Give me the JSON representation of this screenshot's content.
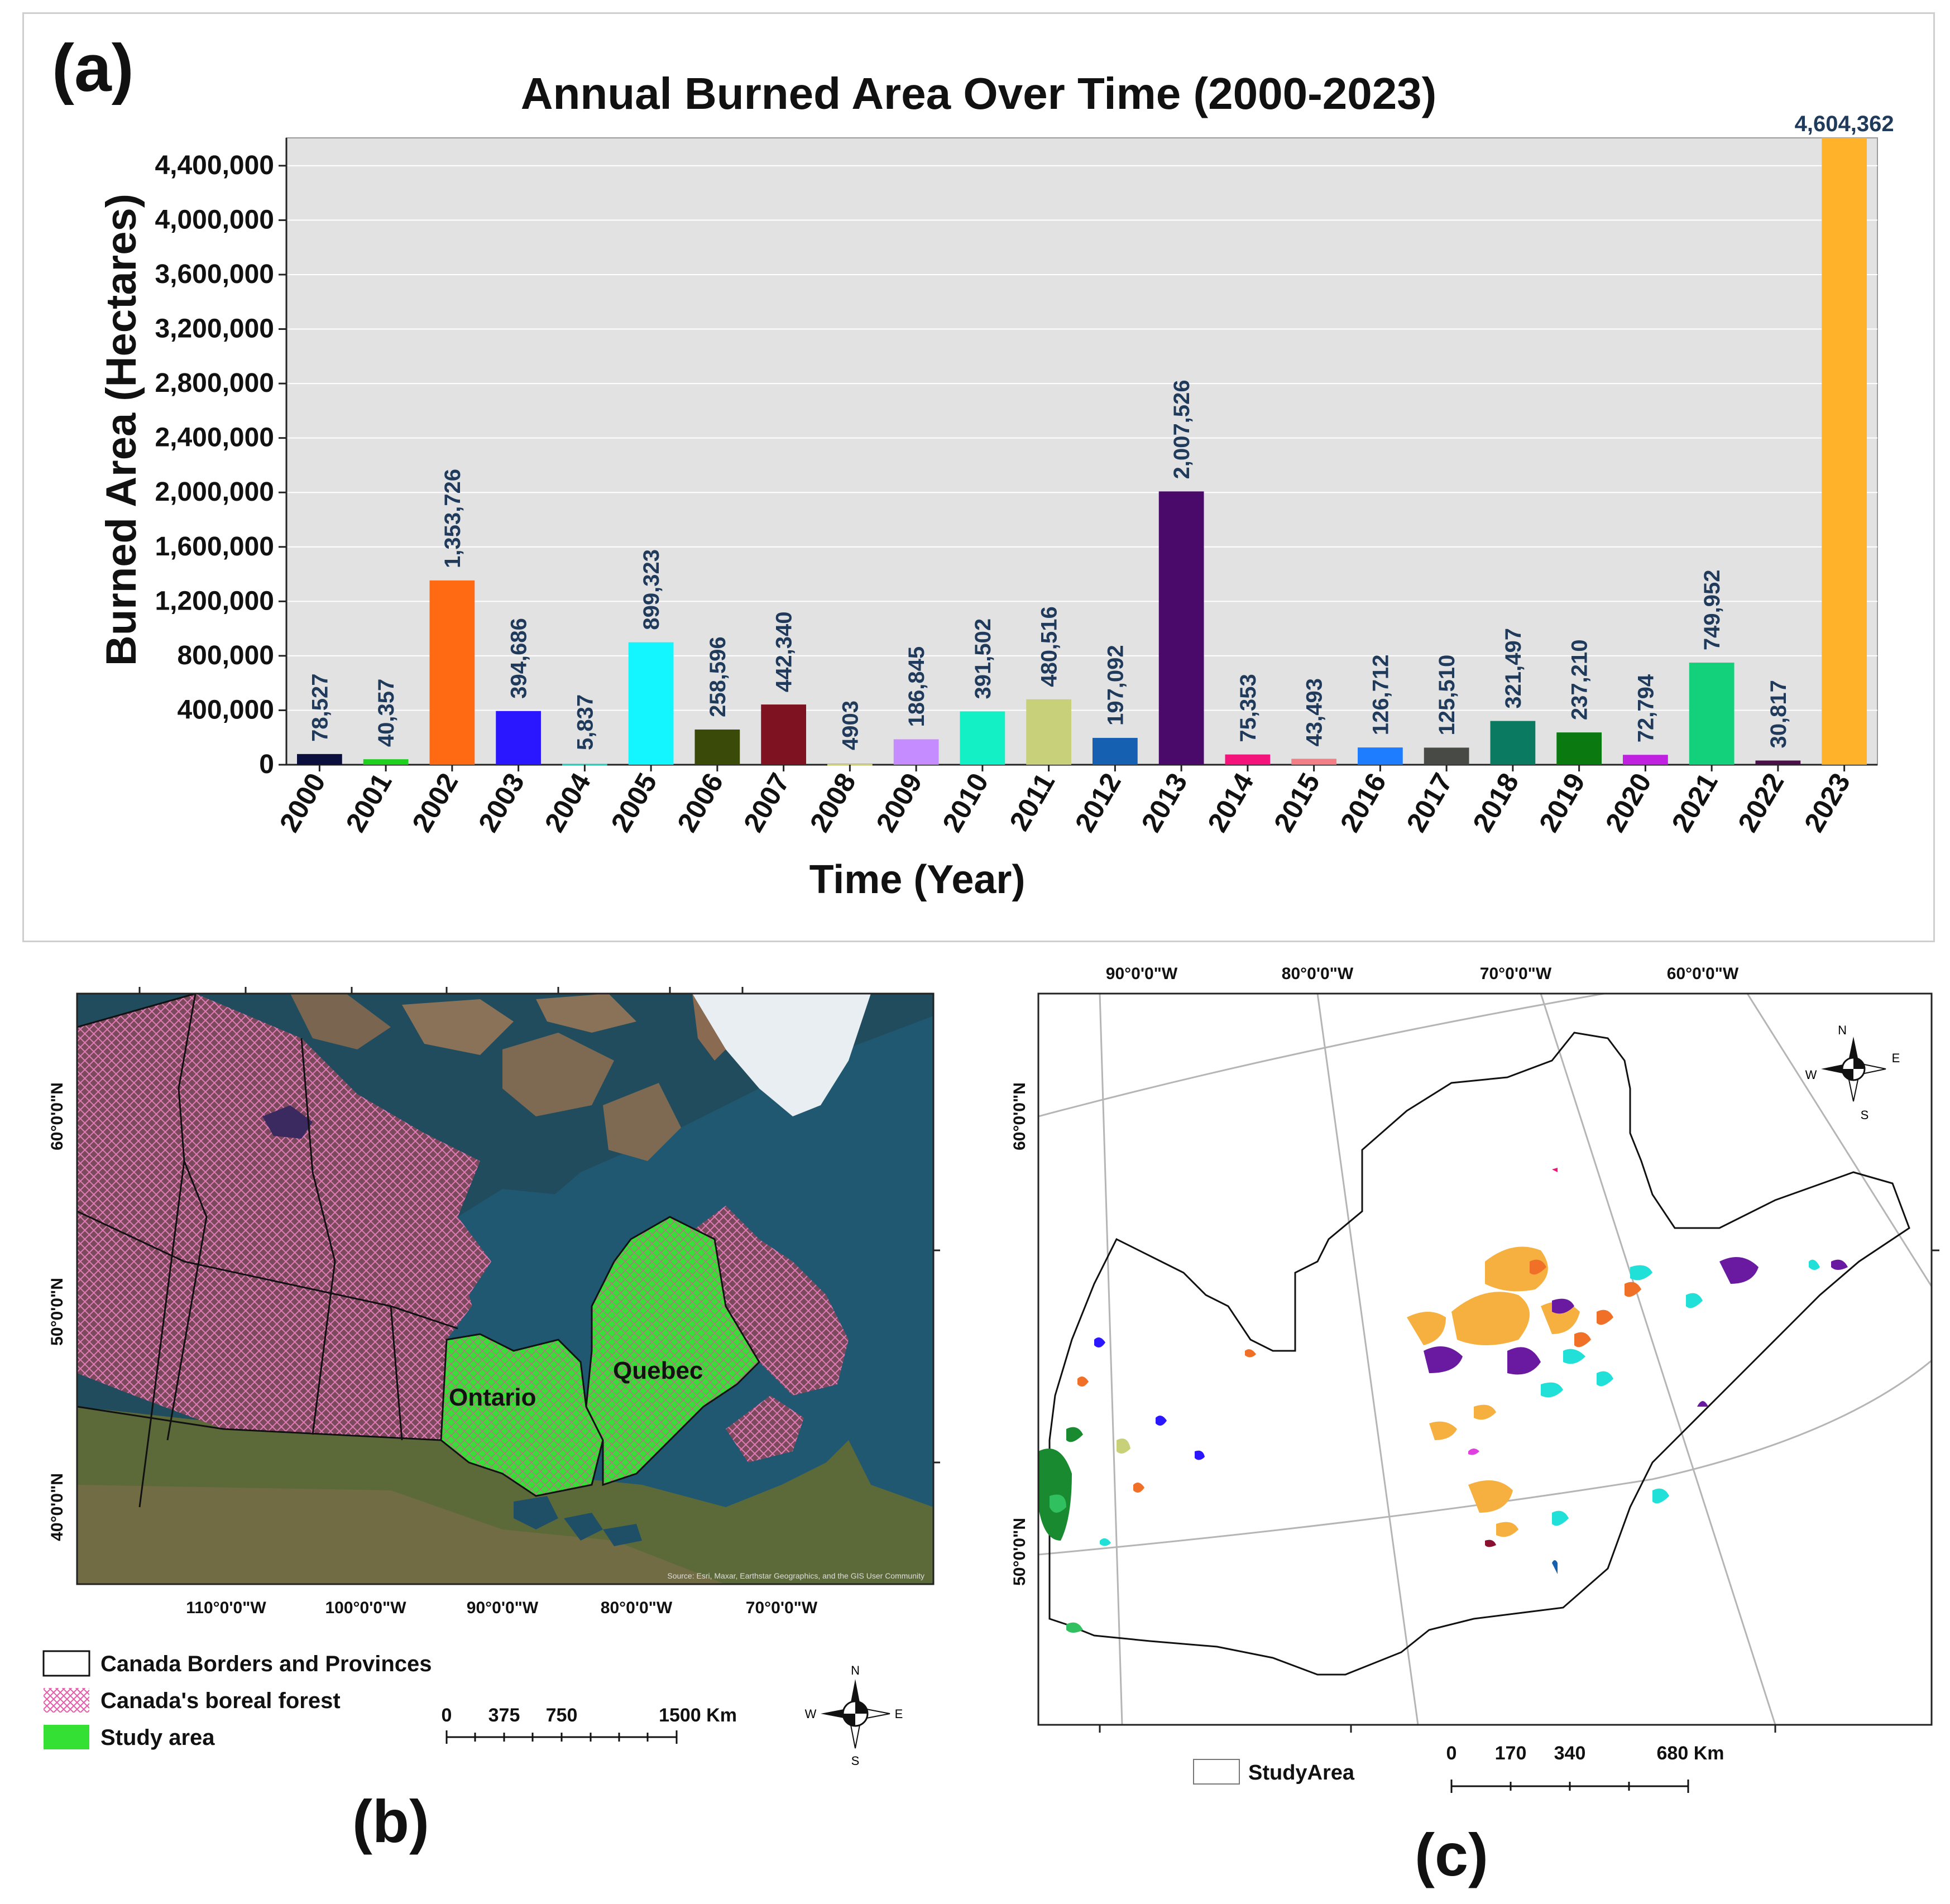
{
  "panel_a": {
    "letter": "(a)",
    "chart_data": {
      "type": "bar",
      "title": "Annual Burned Area Over Time (2000-2023)",
      "xlabel": "Time (Year)",
      "ylabel": "Burned Area (Hectares)",
      "ylim": [
        0,
        4604362
      ],
      "yticks": [
        0,
        400000,
        800000,
        1200000,
        1600000,
        2000000,
        2400000,
        2800000,
        3200000,
        3600000,
        4000000,
        4400000
      ],
      "ytick_labels": [
        "0",
        "400,000",
        "800,000",
        "1,200,000",
        "1,600,000",
        "2,000,000",
        "2,400,000",
        "2,800,000",
        "3,200,000",
        "3,600,000",
        "4,000,000",
        "4,400,000"
      ],
      "categories": [
        "2000",
        "2001",
        "2002",
        "2003",
        "2004",
        "2005",
        "2006",
        "2007",
        "2008",
        "2009",
        "2010",
        "2011",
        "2012",
        "2013",
        "2014",
        "2015",
        "2016",
        "2017",
        "2018",
        "2019",
        "2020",
        "2021",
        "2022",
        "2023"
      ],
      "values": [
        78527,
        40357,
        1353726,
        394686,
        5837,
        899323,
        258596,
        442340,
        4903,
        186845,
        391502,
        480516,
        197092,
        2007526,
        75353,
        43493,
        126712,
        125510,
        321497,
        237210,
        72794,
        749952,
        30817,
        4604362
      ],
      "value_labels": [
        "78,527",
        "40,357",
        "1,353,726",
        "394,686",
        "5,837",
        "899,323",
        "258,596",
        "442,340",
        "4903",
        "186,845",
        "391,502",
        "480,516",
        "197,092",
        "2,007,526",
        "75,353",
        "43,493",
        "126,712",
        "125,510",
        "321,497",
        "237,210",
        "72,794",
        "749,952",
        "30,817",
        "4,604,362"
      ],
      "colors": [
        "#0b0f3d",
        "#1fd01f",
        "#ff6a12",
        "#2a17ff",
        "#28c8b4",
        "#13f5ff",
        "#3a4a08",
        "#7f1220",
        "#d8d870",
        "#c48cff",
        "#13f0c6",
        "#c8d07a",
        "#1560b0",
        "#4a0a6a",
        "#f4137a",
        "#f27f86",
        "#1e7dff",
        "#474a45",
        "#0a7a60",
        "#0a7a10",
        "#c020e0",
        "#13d07a",
        "#4a1048",
        "#ffb22a"
      ],
      "grid": true,
      "legend": "none"
    }
  },
  "panel_b": {
    "letter": "(b)",
    "map_labels": {
      "ontario": "Ontario",
      "quebec": "Quebec",
      "source": "Source: Esri, Maxar, Earthstar Geographics, and the GIS User Community"
    },
    "lat_labels": [
      "60°0'0\"N",
      "50°0'0\"N",
      "40°0'0\"N"
    ],
    "lon_labels": [
      "110°0'0\"W",
      "100°0'0\"W",
      "90°0'0\"W",
      "80°0'0\"W",
      "70°0'0\"W"
    ],
    "legend": [
      {
        "label": "Canada Borders and Provinces",
        "swatch": "outline"
      },
      {
        "label": "Canada's boreal forest",
        "swatch": "hatch"
      },
      {
        "label": "Study area",
        "swatch": "green"
      }
    ],
    "scale": {
      "ticks": [
        "0",
        "375",
        "750",
        "1500 Km"
      ]
    },
    "compass": {
      "n": "N",
      "s": "S",
      "e": "E",
      "w": "W"
    },
    "colors": {
      "study_area": "#33e033",
      "boreal": "#d85aa8"
    }
  },
  "panel_c": {
    "letter": "(c)",
    "lon_labels": [
      "90°0'0\"W",
      "80°0'0\"W",
      "70°0'0\"W",
      "60°0'0\"W"
    ],
    "lat_labels": [
      "60°0'0\"N",
      "50°0'0\"N"
    ],
    "legend": [
      {
        "label": "StudyArea",
        "swatch": "outline"
      }
    ],
    "scale": {
      "ticks": [
        "0",
        "170",
        "340",
        "680 Km"
      ]
    },
    "compass": {
      "n": "N",
      "s": "S",
      "e": "E",
      "w": "W"
    }
  }
}
